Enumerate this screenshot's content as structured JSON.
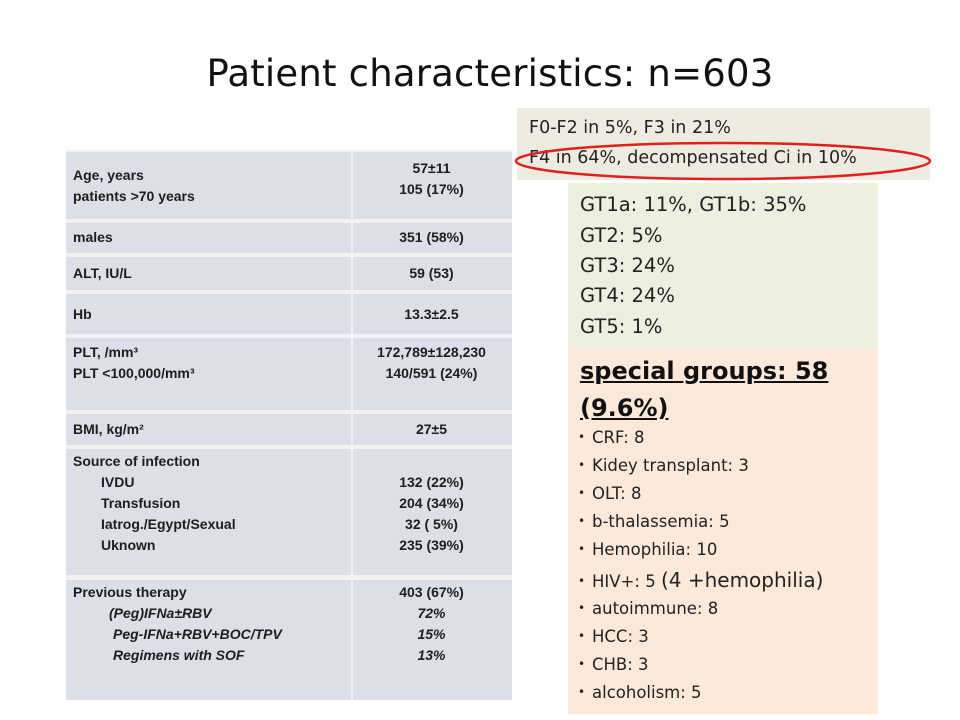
{
  "slide": {
    "title": "Patient characteristics: n=603"
  },
  "table": {
    "age": {
      "label1": "Age, years",
      "label2": "patients >70 years",
      "value1": "57±11",
      "value2": "105 (17%)"
    },
    "males": {
      "label": "males",
      "value": "351 (58%)"
    },
    "alt": {
      "label": "ALT, IU/L",
      "value": "59 (53)"
    },
    "hb": {
      "label": "Hb",
      "value": "13.3±2.5"
    },
    "plt": {
      "label1": "PLT, /mm³",
      "label2": "PLT <100,000/mm³",
      "value1": "172,789±128,230",
      "value2": "140/591 (24%)"
    },
    "bmi": {
      "label": "BMI, kg/m²",
      "value": "27±5"
    },
    "source": {
      "label": "Source of infection",
      "items": [
        {
          "label": "IVDU",
          "value": "132 (22%)"
        },
        {
          "label": "Transfusion",
          "value": "204 (34%)"
        },
        {
          "label": "Iatrog./Egypt/Sexual",
          "value": "32 ( 5%)"
        },
        {
          "label": "Uknown",
          "value": "235 (39%)"
        }
      ]
    },
    "therapy": {
      "label": "Previous therapy",
      "value": "403 (67%)",
      "items": [
        {
          "label": "(Peg)IFNa±RBV",
          "value": "72%"
        },
        {
          "label": "Peg-IFNa+RBV+BOC/TPV",
          "value": "15%"
        },
        {
          "label": "Regimens with SOF",
          "value": "13%"
        }
      ]
    }
  },
  "fibrosis": {
    "line1": "F0-F2 in 5%, F3 in 21%",
    "line2": "F4 in 64%, decompensated Ci in 10%",
    "highlight_color": "#e0201c"
  },
  "genotypes": [
    "GT1a: 11%, GT1b: 35%",
    "GT2: 5%",
    "GT3: 24%",
    "GT4: 24%",
    "GT5: 1%"
  ],
  "special_groups": {
    "heading_line1": "special groups: 58",
    "heading_line2": "(9.6%)",
    "bullet": "•",
    "items": [
      "CRF: 8",
      "Kidey transplant: 3",
      "OLT: 8",
      "b-thalassemia: 5",
      "Hemophilia: 10",
      "HIV+: 5",
      "autoimmune: 8",
      "HCC: 3",
      "CHB: 3",
      "alcoholism: 5"
    ],
    "hiv_note": "(4 +hemophilia)"
  },
  "colors": {
    "table_row": "#dcdee8",
    "fibrosis_bg": "#eeece1",
    "genotype_bg": "#ebf1de",
    "special_bg": "#fde9d9"
  }
}
